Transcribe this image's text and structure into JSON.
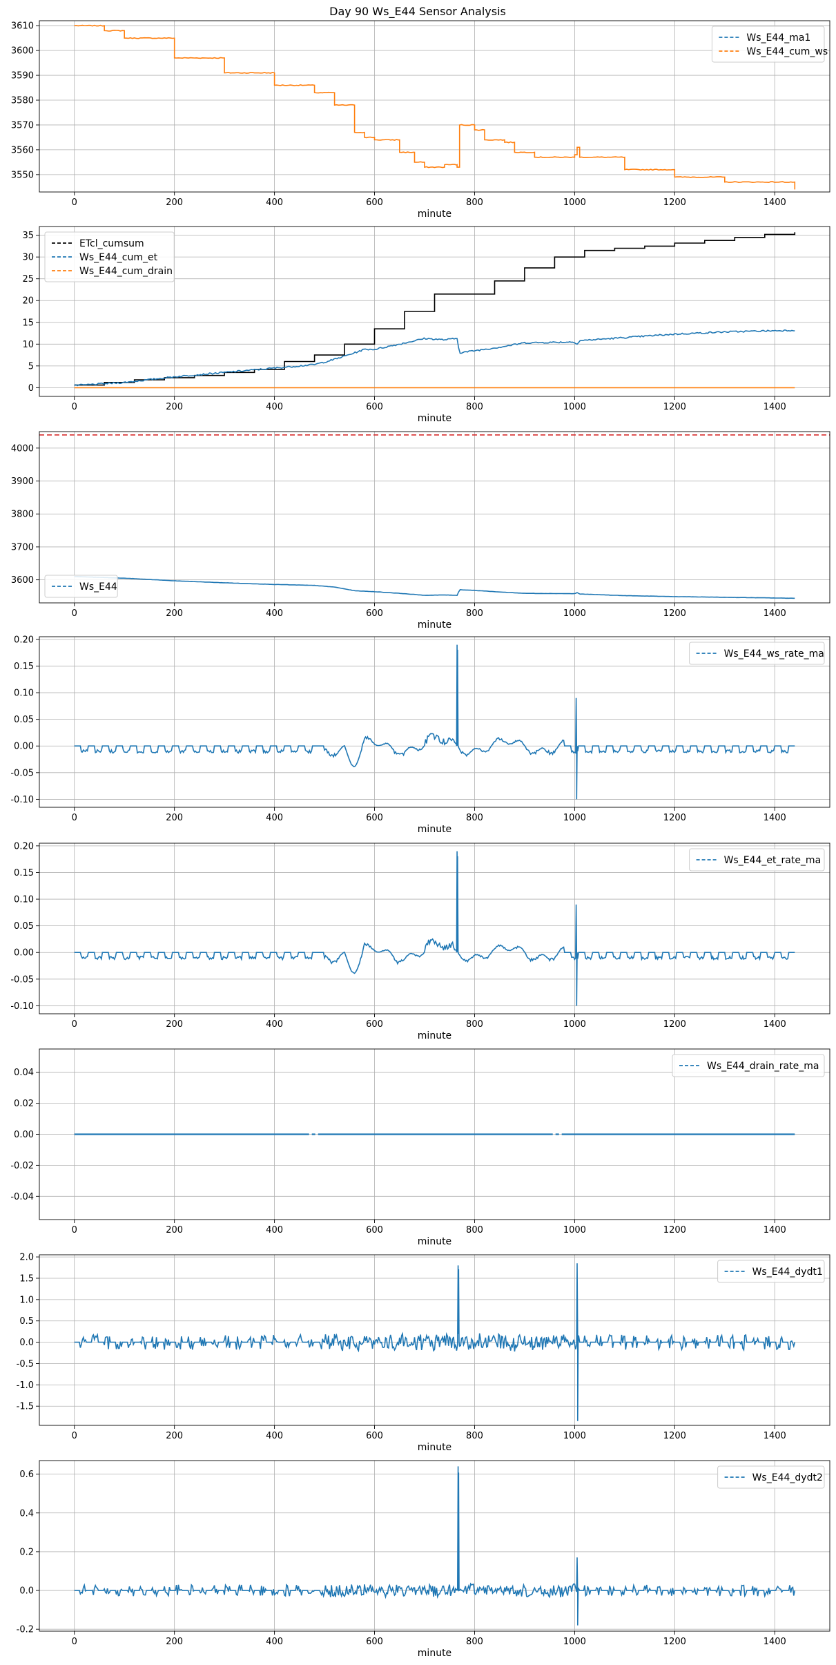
{
  "figure": {
    "title": "Day 90 Ws_E44 Sensor Analysis"
  },
  "colors": {
    "blue": "#1f77b4",
    "orange": "#ff7f0e",
    "black": "#000000",
    "red": "#d62728",
    "grid": "#b0b0b0"
  },
  "chart_data": [
    {
      "type": "line",
      "xlabel": "minute",
      "xlim": [
        -70,
        1510
      ],
      "ylim": [
        3543,
        3612
      ],
      "xticks": [
        0,
        200,
        400,
        600,
        800,
        1000,
        1200,
        1400
      ],
      "yticks": [
        3550,
        3560,
        3570,
        3580,
        3590,
        3600,
        3610
      ],
      "ytick_labels": [
        "3550",
        "3560",
        "3570",
        "3580",
        "3590",
        "3600",
        "3610"
      ],
      "legend_loc": "upper right",
      "series": [
        {
          "name": "Ws_E44_ma1",
          "color": "#1f77b4",
          "style": "dashed",
          "x": [
            0,
            1440
          ],
          "y": [
            3610,
            3544
          ]
        },
        {
          "name": "Ws_E44_cum_ws",
          "color": "#ff7f0e",
          "style": "step",
          "x": [
            0,
            60,
            100,
            200,
            300,
            400,
            480,
            520,
            560,
            580,
            600,
            650,
            680,
            700,
            740,
            765,
            770,
            800,
            820,
            860,
            880,
            920,
            1000,
            1005,
            1010,
            1100,
            1200,
            1300,
            1440
          ],
          "y": [
            3610,
            3608,
            3605,
            3597,
            3591,
            3586,
            3583,
            3578,
            3567,
            3565,
            3564,
            3559,
            3555,
            3553,
            3554,
            3553,
            3570,
            3568,
            3564,
            3563,
            3559,
            3557,
            3558,
            3561,
            3557,
            3552,
            3549,
            3547,
            3544
          ]
        }
      ]
    },
    {
      "type": "line",
      "xlabel": "minute",
      "xlim": [
        -70,
        1510
      ],
      "ylim": [
        -2,
        37
      ],
      "xticks": [
        0,
        200,
        400,
        600,
        800,
        1000,
        1200,
        1400
      ],
      "yticks": [
        0,
        5,
        10,
        15,
        20,
        25,
        30,
        35
      ],
      "ytick_labels": [
        "0",
        "5",
        "10",
        "15",
        "20",
        "25",
        "30",
        "35"
      ],
      "legend_loc": "upper left",
      "series": [
        {
          "name": "ETcl_cumsum",
          "color": "#000000",
          "style": "step",
          "x": [
            0,
            60,
            120,
            180,
            240,
            300,
            360,
            420,
            480,
            540,
            600,
            660,
            720,
            780,
            840,
            900,
            960,
            1020,
            1080,
            1140,
            1200,
            1260,
            1320,
            1380,
            1440
          ],
          "y": [
            0.6,
            1.2,
            1.8,
            2.3,
            2.8,
            3.5,
            4.2,
            6.0,
            7.5,
            10.0,
            13.5,
            17.5,
            21.5,
            21.5,
            24.5,
            27.5,
            30.0,
            31.5,
            32.0,
            32.5,
            33.2,
            33.8,
            34.5,
            35.2,
            35.7
          ]
        },
        {
          "name": "Ws_E44_cum_et",
          "color": "#1f77b4",
          "style": "solid",
          "x": [
            0,
            100,
            200,
            300,
            400,
            480,
            520,
            560,
            580,
            600,
            650,
            700,
            740,
            765,
            770,
            800,
            850,
            900,
            1000,
            1005,
            1010,
            1100,
            1200,
            1300,
            1440
          ],
          "y": [
            0.5,
            1.2,
            2.5,
            3.5,
            4.5,
            5.3,
            6.5,
            8.0,
            8.8,
            8.8,
            10.0,
            11.3,
            11.0,
            11.3,
            8.0,
            8.5,
            9.3,
            10.3,
            10.5,
            10.0,
            10.8,
            11.5,
            12.3,
            12.8,
            13.2
          ]
        },
        {
          "name": "Ws_E44_cum_drain",
          "color": "#ff7f0e",
          "style": "solid",
          "x": [
            0,
            1440
          ],
          "y": [
            0,
            0
          ]
        }
      ]
    },
    {
      "type": "line",
      "xlabel": "minute",
      "xlim": [
        -70,
        1510
      ],
      "ylim": [
        3530,
        4050
      ],
      "xticks": [
        0,
        200,
        400,
        600,
        800,
        1000,
        1200,
        1400
      ],
      "yticks": [
        3600,
        3700,
        3800,
        3900,
        4000
      ],
      "ytick_labels": [
        "3600",
        "3700",
        "3800",
        "3900",
        "4000"
      ],
      "hline": 4040,
      "legend_loc": "lower left",
      "series": [
        {
          "name": "Ws_E44",
          "color": "#1f77b4",
          "style": "solid",
          "x": [
            0,
            100,
            200,
            300,
            400,
            480,
            520,
            560,
            600,
            650,
            700,
            740,
            765,
            770,
            800,
            850,
            900,
            1000,
            1005,
            1010,
            1100,
            1200,
            1300,
            1440
          ],
          "y": [
            3610,
            3605,
            3597,
            3591,
            3586,
            3583,
            3578,
            3567,
            3564,
            3559,
            3553,
            3554,
            3553,
            3570,
            3568,
            3563,
            3559,
            3558,
            3561,
            3557,
            3552,
            3549,
            3547,
            3544
          ]
        }
      ]
    },
    {
      "type": "line",
      "xlabel": "minute",
      "xlim": [
        -70,
        1510
      ],
      "ylim": [
        -0.115,
        0.205
      ],
      "xticks": [
        0,
        200,
        400,
        600,
        800,
        1000,
        1200,
        1400
      ],
      "yticks": [
        -0.1,
        -0.05,
        0.0,
        0.05,
        0.1,
        0.15,
        0.2
      ],
      "ytick_labels": [
        "-0.10",
        "-0.05",
        "0.00",
        "0.05",
        "0.10",
        "0.15",
        "0.20"
      ],
      "legend_loc": "upper right",
      "signal": {
        "base": 0,
        "dip": -0.012,
        "mid_low": -0.05,
        "mid_high": 0.02,
        "spike1_x": 765,
        "spike1": 0.19,
        "spike2_x": 1003,
        "spike2_high": 0.09,
        "spike2_low": -0.1
      },
      "series": [
        {
          "name": "Ws_E44_ws_rate_ma",
          "color": "#1f77b4",
          "style": "dashed"
        }
      ]
    },
    {
      "type": "line",
      "xlabel": "minute",
      "xlim": [
        -70,
        1510
      ],
      "ylim": [
        -0.115,
        0.205
      ],
      "xticks": [
        0,
        200,
        400,
        600,
        800,
        1000,
        1200,
        1400
      ],
      "yticks": [
        -0.1,
        -0.05,
        0.0,
        0.05,
        0.1,
        0.15,
        0.2
      ],
      "ytick_labels": [
        "-0.10",
        "-0.05",
        "0.00",
        "0.05",
        "0.10",
        "0.15",
        "0.20"
      ],
      "legend_loc": "upper right",
      "signal": {
        "base": 0,
        "dip": -0.012,
        "mid_low": -0.05,
        "mid_high": 0.02,
        "spike1_x": 765,
        "spike1": 0.19,
        "spike2_x": 1003,
        "spike2_high": 0.09,
        "spike2_low": -0.1
      },
      "series": [
        {
          "name": "Ws_E44_et_rate_ma",
          "color": "#1f77b4",
          "style": "dashed"
        }
      ]
    },
    {
      "type": "line",
      "xlabel": "minute",
      "xlim": [
        -70,
        1510
      ],
      "ylim": [
        -0.055,
        0.055
      ],
      "xticks": [
        0,
        200,
        400,
        600,
        800,
        1000,
        1200,
        1400
      ],
      "yticks": [
        -0.04,
        -0.02,
        0.0,
        0.02,
        0.04
      ],
      "ytick_labels": [
        "-0.04",
        "-0.02",
        "0.00",
        "0.02",
        "0.04"
      ],
      "legend_loc": "upper right",
      "series": [
        {
          "name": "Ws_E44_drain_rate_ma",
          "color": "#1f77b4",
          "style": "solid",
          "x": [
            0,
            1440
          ],
          "y": [
            0,
            0
          ]
        }
      ]
    },
    {
      "type": "line",
      "xlabel": "minute",
      "xlim": [
        -70,
        1510
      ],
      "ylim": [
        -1.95,
        2.05
      ],
      "xticks": [
        0,
        200,
        400,
        600,
        800,
        1000,
        1200,
        1400
      ],
      "yticks": [
        -1.5,
        -1.0,
        -0.5,
        0.0,
        0.5,
        1.0,
        1.5,
        2.0
      ],
      "ytick_labels": [
        "-1.5",
        "-1.0",
        "-0.5",
        "0.0",
        "0.5",
        "1.0",
        "1.5",
        "2.0"
      ],
      "legend_loc": "upper right",
      "signal": {
        "base": 0,
        "osc": 0.18,
        "spike1_x": 767,
        "spike1": 1.8,
        "spike2_x": 1005,
        "spike2_high": 1.85,
        "spike2_low": -1.85
      },
      "series": [
        {
          "name": "Ws_E44_dydt1",
          "color": "#1f77b4",
          "style": "dashed"
        }
      ]
    },
    {
      "type": "line",
      "xlabel": "minute",
      "xlim": [
        -70,
        1510
      ],
      "ylim": [
        -0.21,
        0.67
      ],
      "xticks": [
        0,
        200,
        400,
        600,
        800,
        1000,
        1200,
        1400
      ],
      "yticks": [
        -0.2,
        0.0,
        0.2,
        0.4,
        0.6
      ],
      "ytick_labels": [
        "-0.2",
        "0.0",
        "0.2",
        "0.4",
        "0.6"
      ],
      "legend_loc": "upper right",
      "signal": {
        "base": 0,
        "osc": 0.03,
        "spike1_x": 767,
        "spike1": 0.64,
        "spike2_x": 1005,
        "spike2_high": 0.17,
        "spike2_low": -0.18
      },
      "series": [
        {
          "name": "Ws_E44_dydt2",
          "color": "#1f77b4",
          "style": "dashed"
        }
      ]
    }
  ]
}
